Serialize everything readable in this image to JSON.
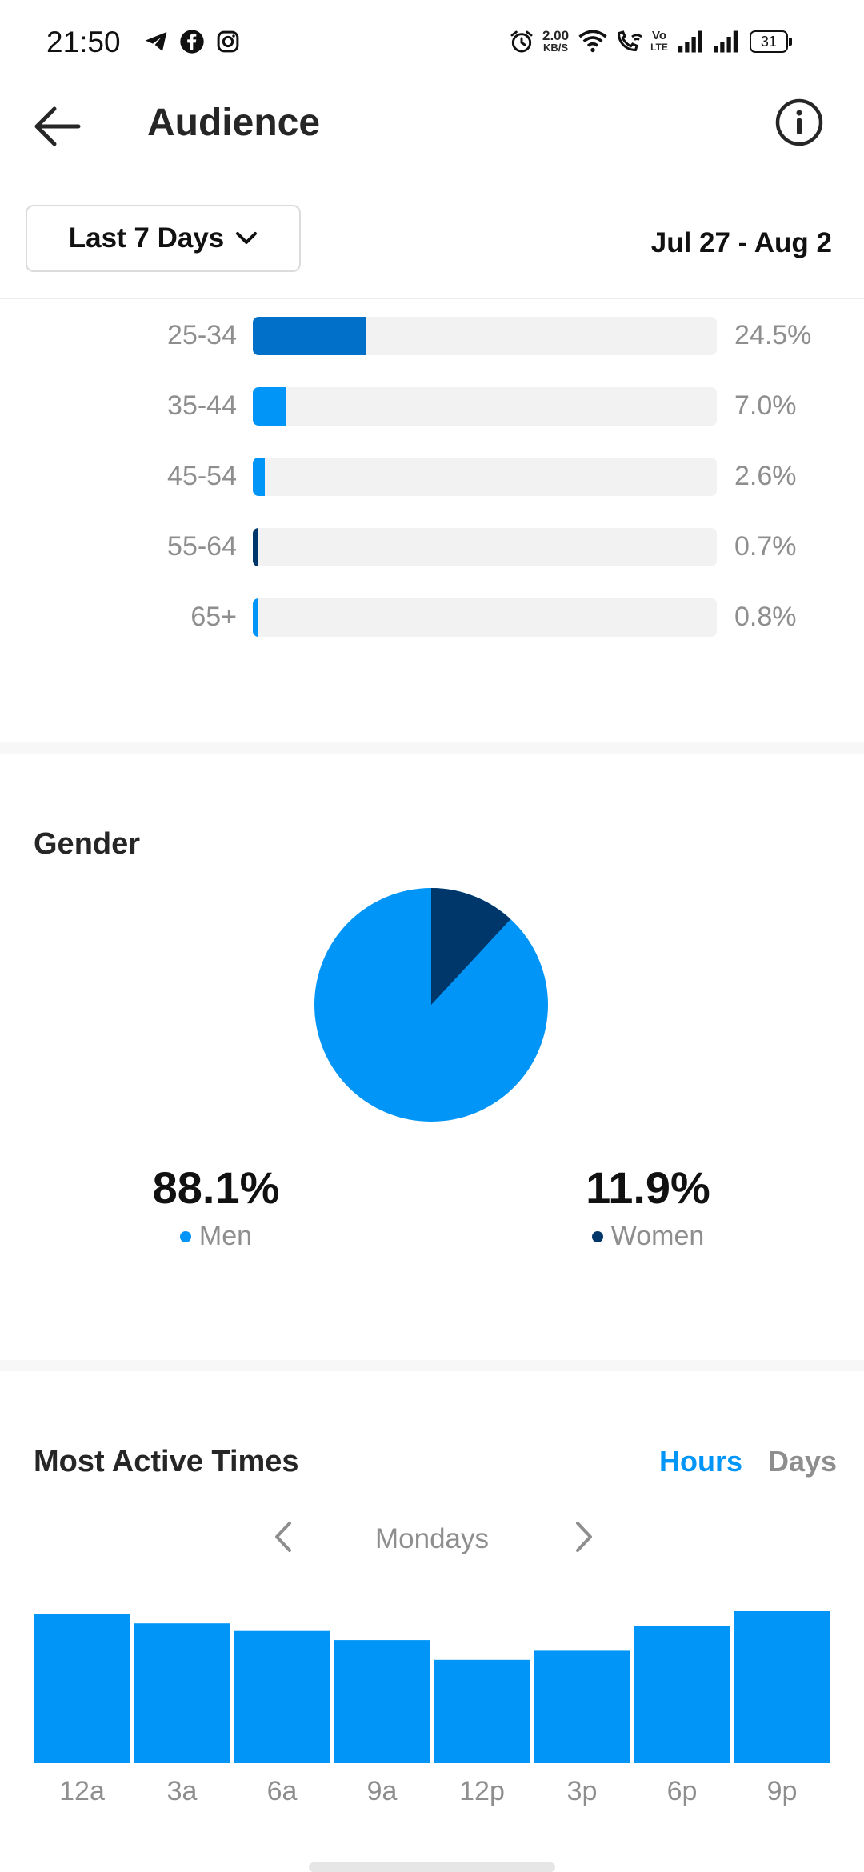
{
  "status_bar": {
    "time": "21:50",
    "net_speed_top": "2.00",
    "net_speed_bottom": "KB/S",
    "volte_top": "Vo",
    "volte_bottom": "LTE",
    "battery": "31"
  },
  "header": {
    "title": "Audience"
  },
  "filter": {
    "range_label": "Last 7 Days",
    "date_range": "Jul 27 - Aug 2"
  },
  "age_ranges": [
    {
      "label": "25-34",
      "value_text": "24.5%",
      "value": 24.5,
      "color": "#0070c9"
    },
    {
      "label": "35-44",
      "value_text": "7.0%",
      "value": 7.0,
      "color": "#0095f6"
    },
    {
      "label": "45-54",
      "value_text": "2.6%",
      "value": 2.6,
      "color": "#0095f6"
    },
    {
      "label": "55-64",
      "value_text": "0.7%",
      "value": 0.7,
      "color": "#00376b"
    },
    {
      "label": "65+",
      "value_text": "0.8%",
      "value": 0.8,
      "color": "#0095f6"
    }
  ],
  "gender": {
    "title": "Gender",
    "men": {
      "label": "Men",
      "value_text": "88.1%",
      "value": 88.1,
      "color": "#0095f6"
    },
    "women": {
      "label": "Women",
      "value_text": "11.9%",
      "value": 11.9,
      "color": "#00376b"
    }
  },
  "most_active": {
    "title": "Most Active Times",
    "tabs": {
      "hours": "Hours",
      "days": "Days"
    },
    "day_label": "Mondays"
  },
  "chart_data": {
    "type": "bar",
    "categories": [
      "12a",
      "3a",
      "6a",
      "9a",
      "12p",
      "3p",
      "6p",
      "9p"
    ],
    "values": [
      98,
      92,
      87,
      81,
      68,
      74,
      90,
      100
    ],
    "ylim": [
      0,
      100
    ],
    "color": "#0095f6",
    "grid": false
  }
}
